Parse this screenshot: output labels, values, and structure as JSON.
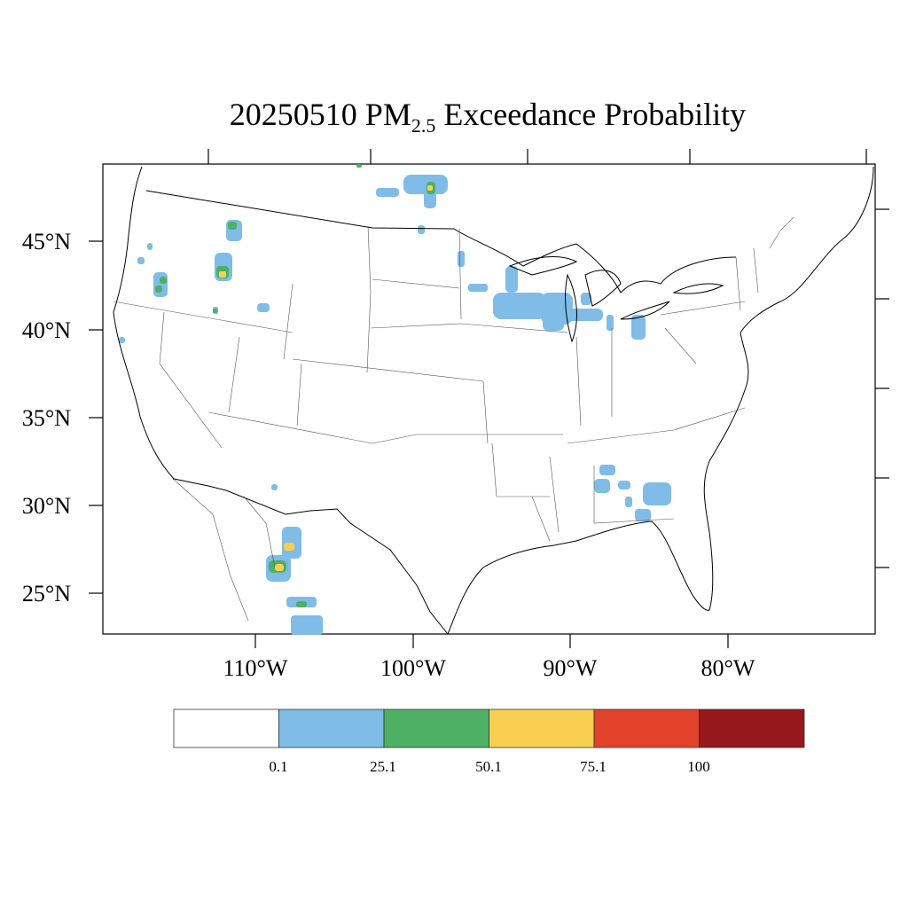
{
  "title": {
    "date": "20250510",
    "species": "PM",
    "species_sub": "2.5",
    "rest": "Exceedance Probability"
  },
  "lat_labels": [
    "45°N",
    "40°N",
    "35°N",
    "30°N",
    "25°N"
  ],
  "lon_labels": [
    "110°W",
    "100°W",
    "90°W",
    "80°W"
  ],
  "colorbar": {
    "colors": [
      "#ffffff",
      "#7fbce7",
      "#4db065",
      "#f9cf51",
      "#e2412a",
      "#96181d"
    ],
    "labels": [
      "0.1",
      "25.1",
      "50.1",
      "75.1",
      "100"
    ]
  }
}
